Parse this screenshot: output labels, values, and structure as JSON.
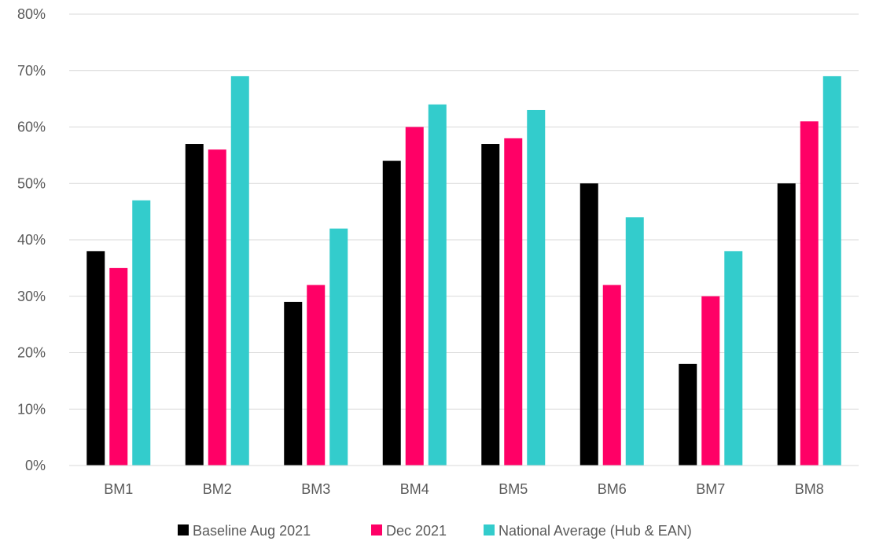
{
  "chart_data": {
    "type": "bar",
    "categories": [
      "BM1",
      "BM2",
      "BM3",
      "BM4",
      "BM5",
      "BM6",
      "BM7",
      "BM8"
    ],
    "series": [
      {
        "name": "Baseline Aug 2021",
        "values": [
          38,
          57,
          29,
          54,
          57,
          50,
          18,
          50
        ],
        "color": "#000000"
      },
      {
        "name": "Dec 2021",
        "values": [
          35,
          56,
          32,
          60,
          58,
          32,
          30,
          61
        ],
        "color": "#ff0066"
      },
      {
        "name": "National Average (Hub & EAN)",
        "values": [
          47,
          69,
          42,
          64,
          63,
          44,
          38,
          69
        ],
        "color": "#33cccc"
      }
    ],
    "ylim": [
      0,
      80
    ],
    "yticks": [
      0,
      10,
      20,
      30,
      40,
      50,
      60,
      70,
      80
    ],
    "ytick_labels": [
      "0%",
      "10%",
      "20%",
      "30%",
      "40%",
      "50%",
      "60%",
      "70%",
      "80%"
    ],
    "title": "",
    "xlabel": "",
    "ylabel": "",
    "grid": true,
    "legend_position": "bottom"
  }
}
